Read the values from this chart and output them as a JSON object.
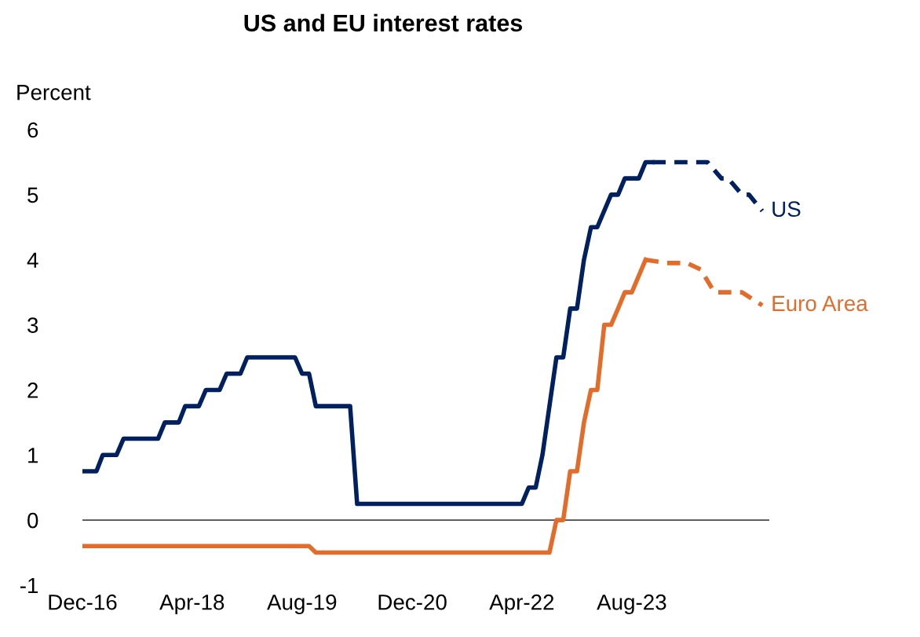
{
  "chart_data": {
    "type": "line",
    "title": "US and EU interest rates",
    "ylabel": "Percent",
    "xlim": [
      "2016-12",
      "2025-04"
    ],
    "ylim": [
      -1,
      6
    ],
    "yticks": [
      -1,
      0,
      1,
      2,
      3,
      4,
      5,
      6
    ],
    "xticks": [
      {
        "value": "2016-12",
        "label": "Dec-16"
      },
      {
        "value": "2018-04",
        "label": "Apr-18"
      },
      {
        "value": "2019-08",
        "label": "Aug-19"
      },
      {
        "value": "2020-12",
        "label": "Dec-20"
      },
      {
        "value": "2022-04",
        "label": "Apr-22"
      },
      {
        "value": "2023-08",
        "label": "Aug-23"
      }
    ],
    "grid": false,
    "legend": false,
    "marker": "none",
    "ref_lines": [
      {
        "axis": "y",
        "value": 0,
        "color": "#000000",
        "line_style": "solid"
      }
    ],
    "series": [
      {
        "color": "#002060",
        "line_style": "solid",
        "x": [
          "2016-12",
          "2017-02",
          "2017-03",
          "2017-05",
          "2017-06",
          "2017-11",
          "2017-12",
          "2018-02",
          "2018-03",
          "2018-05",
          "2018-06",
          "2018-08",
          "2018-09",
          "2018-11",
          "2018-12",
          "2019-07",
          "2019-08",
          "2019-09",
          "2019-10",
          "2020-03",
          "2020-04",
          "2022-04",
          "2022-05",
          "2022-06",
          "2022-07",
          "2022-09",
          "2022-10",
          "2022-11",
          "2022-12",
          "2023-01",
          "2023-02",
          "2023-03",
          "2023-05",
          "2023-06",
          "2023-07",
          "2023-09",
          "2023-10",
          "2023-11"
        ],
        "values": [
          0.75,
          0.75,
          1.0,
          1.0,
          1.25,
          1.25,
          1.5,
          1.5,
          1.75,
          1.75,
          2.0,
          2.0,
          2.25,
          2.25,
          2.5,
          2.5,
          2.25,
          2.25,
          1.75,
          1.75,
          0.25,
          0.25,
          0.5,
          0.5,
          1.0,
          2.5,
          2.5,
          3.25,
          3.25,
          4.0,
          4.5,
          4.5,
          5.0,
          5.0,
          5.25,
          5.25,
          5.5,
          5.5
        ]
      },
      {
        "name": "US",
        "color": "#002060",
        "line_style": "dashed",
        "x": [
          "2023-11",
          "2024-07",
          "2024-09",
          "2024-10",
          "2024-12",
          "2025-01",
          "2025-03"
        ],
        "values": [
          5.5,
          5.5,
          5.25,
          5.25,
          5.0,
          5.0,
          4.75
        ]
      },
      {
        "color": "#e46c2a",
        "line_style": "solid",
        "x": [
          "2016-12",
          "2019-09",
          "2019-10",
          "2022-08",
          "2022-09",
          "2022-10",
          "2022-11",
          "2022-12",
          "2023-01",
          "2023-02",
          "2023-03",
          "2023-04",
          "2023-05",
          "2023-06",
          "2023-07",
          "2023-08",
          "2023-10"
        ],
        "values": [
          -0.4,
          -0.4,
          -0.5,
          -0.5,
          0.0,
          0.0,
          0.75,
          0.75,
          1.5,
          2.0,
          2.0,
          3.0,
          3.0,
          3.25,
          3.5,
          3.5,
          4.0
        ]
      },
      {
        "name": "Euro Area",
        "color": "#e46c2a",
        "line_style": "dashed",
        "x": [
          "2023-10",
          "2024-01",
          "2024-04",
          "2024-06",
          "2024-08",
          "2024-12",
          "2025-03"
        ],
        "values": [
          4.0,
          3.95,
          3.95,
          3.85,
          3.5,
          3.5,
          3.3
        ]
      }
    ]
  }
}
